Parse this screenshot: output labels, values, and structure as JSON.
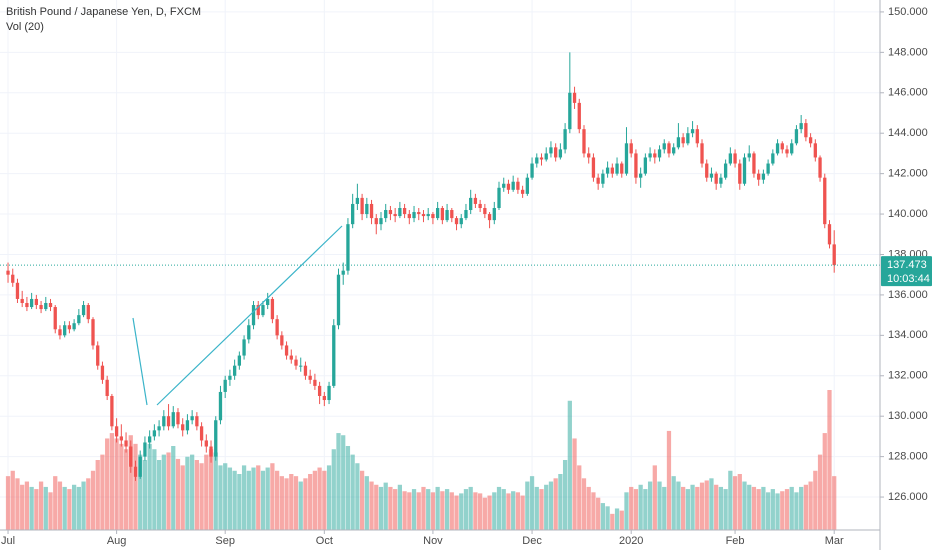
{
  "chart_data": {
    "type": "candlestick",
    "title": "British Pound / Japanese Yen, D, FXCM",
    "subtitle": "Vol (20)",
    "up_color": "#26a69a",
    "down_color": "#ef5350",
    "countdown": "10:03:44",
    "xlim": [
      -1.7,
      184.7
    ],
    "ylim": [
      124.37,
      150.59
    ],
    "yticks": [
      {
        "value": 150,
        "label": "150.000"
      },
      {
        "value": 148,
        "label": "148.000"
      },
      {
        "value": 146,
        "label": "146.000"
      },
      {
        "value": 144,
        "label": "144.000"
      },
      {
        "value": 142,
        "label": "142.000"
      },
      {
        "value": 140,
        "label": "140.000"
      },
      {
        "value": 138,
        "label": "138.000"
      },
      {
        "value": 136,
        "label": "136.000"
      },
      {
        "value": 134,
        "label": "134.000"
      },
      {
        "value": 132,
        "label": "132.000"
      },
      {
        "value": 130,
        "label": "130.000"
      },
      {
        "value": 128,
        "label": "128.000"
      },
      {
        "value": 126,
        "label": "126.000"
      }
    ],
    "xticks": [
      {
        "value": 0,
        "label": "Jul"
      },
      {
        "value": 23,
        "label": "Aug"
      },
      {
        "value": 46,
        "label": "Sep"
      },
      {
        "value": 67,
        "label": "Oct"
      },
      {
        "value": 90,
        "label": "Nov"
      },
      {
        "value": 111,
        "label": "Dec"
      },
      {
        "value": 132,
        "label": "2020"
      },
      {
        "value": 154,
        "label": "Feb"
      },
      {
        "value": 175,
        "label": "Mar"
      }
    ],
    "candles": [
      [
        137.2,
        137.6,
        136.6,
        137.0
      ],
      [
        137.0,
        137.3,
        136.4,
        136.6
      ],
      [
        136.6,
        136.8,
        135.6,
        135.8
      ],
      [
        135.8,
        136.2,
        135.4,
        135.6
      ],
      [
        135.6,
        135.9,
        135.2,
        135.4
      ],
      [
        135.4,
        136.1,
        135.3,
        135.8
      ],
      [
        135.8,
        136.0,
        135.3,
        135.5
      ],
      [
        135.5,
        135.7,
        135.1,
        135.3
      ],
      [
        135.3,
        135.9,
        135.2,
        135.6
      ],
      [
        135.6,
        135.8,
        135.2,
        135.4
      ],
      [
        135.4,
        135.5,
        134.1,
        134.3
      ],
      [
        134.3,
        134.5,
        133.8,
        134.0
      ],
      [
        134.0,
        134.7,
        133.9,
        134.5
      ],
      [
        134.5,
        134.7,
        134.1,
        134.3
      ],
      [
        134.3,
        134.8,
        134.2,
        134.6
      ],
      [
        134.6,
        135.3,
        134.5,
        135.0
      ],
      [
        135.0,
        135.7,
        134.9,
        135.5
      ],
      [
        135.5,
        135.6,
        134.6,
        134.8
      ],
      [
        134.8,
        134.9,
        133.3,
        133.5
      ],
      [
        133.5,
        133.7,
        132.3,
        132.5
      ],
      [
        132.5,
        132.7,
        131.6,
        131.8
      ],
      [
        131.8,
        132.0,
        130.8,
        131.0
      ],
      [
        131.0,
        131.1,
        129.3,
        129.5
      ],
      [
        129.5,
        129.9,
        128.7,
        129.0
      ],
      [
        129.0,
        129.6,
        128.5,
        128.8
      ],
      [
        128.8,
        129.2,
        128.2,
        128.5
      ],
      [
        128.5,
        128.8,
        127.2,
        127.5
      ],
      [
        127.5,
        127.8,
        126.8,
        127.0
      ],
      [
        127.0,
        128.3,
        126.9,
        128.0
      ],
      [
        128.0,
        129.0,
        127.8,
        128.7
      ],
      [
        128.7,
        129.3,
        128.4,
        129.0
      ],
      [
        129.0,
        129.6,
        128.8,
        129.3
      ],
      [
        129.3,
        129.8,
        129.0,
        129.5
      ],
      [
        129.5,
        130.3,
        129.3,
        130.0
      ],
      [
        130.0,
        130.6,
        129.3,
        129.5
      ],
      [
        129.5,
        130.5,
        129.4,
        130.2
      ],
      [
        130.2,
        130.4,
        129.4,
        129.6
      ],
      [
        129.6,
        129.9,
        129.0,
        129.3
      ],
      [
        129.3,
        130.1,
        129.1,
        129.8
      ],
      [
        129.8,
        130.3,
        129.6,
        130.0
      ],
      [
        130.0,
        130.2,
        129.3,
        129.5
      ],
      [
        129.5,
        129.7,
        128.5,
        128.8
      ],
      [
        128.8,
        129.1,
        128.2,
        128.5
      ],
      [
        128.5,
        128.8,
        127.7,
        128.0
      ],
      [
        128.0,
        130.0,
        127.8,
        129.8
      ],
      [
        129.8,
        131.5,
        129.6,
        131.2
      ],
      [
        131.2,
        132.0,
        130.9,
        131.8
      ],
      [
        131.8,
        132.3,
        131.5,
        132.0
      ],
      [
        132.0,
        132.8,
        131.8,
        132.5
      ],
      [
        132.5,
        133.2,
        132.3,
        133.0
      ],
      [
        133.0,
        134.0,
        132.8,
        133.8
      ],
      [
        133.8,
        134.8,
        133.6,
        134.5
      ],
      [
        134.5,
        135.7,
        134.3,
        135.5
      ],
      [
        135.5,
        135.7,
        134.8,
        135.0
      ],
      [
        135.0,
        135.7,
        134.9,
        135.5
      ],
      [
        135.5,
        136.1,
        135.3,
        135.8
      ],
      [
        135.8,
        135.9,
        134.6,
        134.8
      ],
      [
        134.8,
        135.0,
        133.8,
        134.0
      ],
      [
        134.0,
        134.2,
        133.3,
        133.5
      ],
      [
        133.5,
        133.7,
        132.8,
        133.0
      ],
      [
        133.0,
        133.3,
        132.6,
        132.8
      ],
      [
        132.8,
        133.0,
        132.3,
        132.5
      ],
      [
        132.5,
        132.9,
        132.2,
        132.5
      ],
      [
        132.5,
        132.7,
        131.8,
        132.0
      ],
      [
        132.0,
        132.3,
        131.6,
        131.8
      ],
      [
        131.8,
        132.1,
        131.3,
        131.5
      ],
      [
        131.5,
        131.7,
        130.6,
        131.0
      ],
      [
        131.0,
        131.2,
        130.5,
        130.8
      ],
      [
        130.8,
        131.7,
        130.6,
        131.5
      ],
      [
        131.5,
        134.8,
        131.4,
        134.5
      ],
      [
        134.5,
        137.3,
        134.3,
        137.0
      ],
      [
        137.0,
        137.6,
        136.5,
        137.2
      ],
      [
        137.2,
        139.8,
        137.0,
        139.5
      ],
      [
        139.5,
        141.0,
        139.3,
        140.5
      ],
      [
        140.5,
        141.5,
        140.2,
        140.8
      ],
      [
        140.8,
        141.0,
        139.7,
        140.0
      ],
      [
        140.0,
        140.8,
        139.8,
        140.5
      ],
      [
        140.5,
        140.7,
        139.5,
        139.8
      ],
      [
        139.8,
        140.0,
        139.0,
        139.5
      ],
      [
        139.5,
        140.1,
        139.2,
        139.8
      ],
      [
        139.8,
        140.5,
        139.6,
        140.2
      ],
      [
        140.2,
        140.4,
        139.7,
        140.0
      ],
      [
        140.0,
        140.3,
        139.6,
        139.9
      ],
      [
        139.9,
        140.6,
        139.8,
        140.3
      ],
      [
        140.3,
        140.5,
        139.8,
        140.0
      ],
      [
        140.0,
        140.2,
        139.5,
        139.8
      ],
      [
        139.8,
        140.4,
        139.6,
        140.1
      ],
      [
        140.1,
        140.3,
        139.7,
        140.0
      ],
      [
        140.0,
        140.2,
        139.6,
        139.9
      ],
      [
        139.9,
        140.3,
        139.7,
        140.0
      ],
      [
        140.0,
        140.1,
        139.5,
        139.8
      ],
      [
        139.8,
        140.6,
        139.7,
        140.3
      ],
      [
        140.3,
        140.4,
        139.5,
        139.7
      ],
      [
        139.7,
        140.5,
        139.6,
        140.2
      ],
      [
        140.2,
        140.3,
        139.6,
        139.8
      ],
      [
        139.8,
        139.9,
        139.2,
        139.5
      ],
      [
        139.5,
        140.0,
        139.3,
        139.8
      ],
      [
        139.8,
        140.5,
        139.7,
        140.2
      ],
      [
        140.2,
        141.2,
        140.0,
        140.8
      ],
      [
        140.8,
        141.0,
        140.3,
        140.5
      ],
      [
        140.5,
        140.7,
        140.1,
        140.3
      ],
      [
        140.3,
        140.5,
        139.8,
        140.0
      ],
      [
        140.0,
        140.1,
        139.3,
        139.7
      ],
      [
        139.7,
        140.6,
        139.5,
        140.3
      ],
      [
        140.3,
        141.6,
        140.2,
        141.3
      ],
      [
        141.3,
        141.8,
        141.1,
        141.5
      ],
      [
        141.5,
        141.7,
        141.0,
        141.2
      ],
      [
        141.2,
        141.9,
        141.1,
        141.6
      ],
      [
        141.6,
        141.8,
        141.0,
        141.2
      ],
      [
        141.2,
        141.4,
        140.8,
        141.0
      ],
      [
        141.0,
        142.0,
        140.9,
        141.8
      ],
      [
        141.8,
        142.8,
        141.7,
        142.5
      ],
      [
        142.5,
        143.0,
        142.3,
        142.8
      ],
      [
        142.8,
        143.0,
        142.4,
        142.7
      ],
      [
        142.7,
        143.3,
        142.6,
        143.0
      ],
      [
        143.0,
        143.6,
        142.8,
        143.3
      ],
      [
        143.3,
        143.5,
        142.6,
        142.8
      ],
      [
        142.8,
        143.5,
        142.7,
        143.2
      ],
      [
        143.2,
        144.5,
        143.0,
        144.2
      ],
      [
        144.2,
        148.0,
        144.0,
        146.0
      ],
      [
        146.0,
        146.3,
        145.2,
        145.5
      ],
      [
        145.5,
        145.7,
        144.0,
        144.2
      ],
      [
        144.2,
        144.4,
        142.8,
        143.0
      ],
      [
        143.0,
        143.3,
        142.5,
        142.8
      ],
      [
        142.8,
        143.0,
        141.6,
        141.8
      ],
      [
        141.8,
        142.0,
        141.2,
        141.5
      ],
      [
        141.5,
        142.2,
        141.3,
        142.0
      ],
      [
        142.0,
        142.6,
        141.8,
        142.3
      ],
      [
        142.3,
        142.5,
        141.8,
        142.0
      ],
      [
        142.0,
        142.8,
        141.9,
        142.5
      ],
      [
        142.5,
        142.6,
        141.8,
        142.0
      ],
      [
        142.0,
        144.3,
        141.9,
        143.5
      ],
      [
        143.5,
        143.7,
        142.8,
        143.0
      ],
      [
        143.0,
        143.2,
        141.5,
        141.8
      ],
      [
        141.8,
        142.3,
        141.3,
        142.0
      ],
      [
        142.0,
        143.0,
        141.9,
        142.8
      ],
      [
        142.8,
        143.3,
        142.6,
        143.0
      ],
      [
        143.0,
        143.2,
        142.5,
        142.8
      ],
      [
        142.8,
        143.4,
        142.6,
        143.2
      ],
      [
        143.2,
        143.7,
        143.0,
        143.5
      ],
      [
        143.5,
        143.6,
        142.8,
        143.0
      ],
      [
        143.0,
        143.5,
        142.9,
        143.3
      ],
      [
        143.3,
        144.5,
        143.2,
        143.8
      ],
      [
        143.8,
        144.0,
        143.3,
        143.5
      ],
      [
        143.5,
        144.3,
        143.4,
        144.0
      ],
      [
        144.0,
        144.6,
        143.8,
        144.2
      ],
      [
        144.2,
        144.4,
        143.3,
        143.5
      ],
      [
        143.5,
        143.7,
        142.3,
        142.5
      ],
      [
        142.5,
        142.7,
        141.6,
        141.8
      ],
      [
        141.8,
        142.3,
        141.6,
        142.0
      ],
      [
        142.0,
        142.1,
        141.2,
        141.5
      ],
      [
        141.5,
        142.0,
        141.3,
        141.8
      ],
      [
        141.8,
        142.7,
        141.7,
        142.5
      ],
      [
        142.5,
        143.3,
        142.4,
        143.0
      ],
      [
        143.0,
        143.2,
        142.3,
        142.5
      ],
      [
        142.5,
        142.7,
        141.2,
        141.5
      ],
      [
        141.5,
        143.0,
        141.4,
        142.8
      ],
      [
        142.8,
        143.4,
        142.6,
        143.0
      ],
      [
        143.0,
        143.1,
        141.8,
        142.0
      ],
      [
        142.0,
        142.2,
        141.4,
        141.7
      ],
      [
        141.7,
        142.2,
        141.5,
        142.0
      ],
      [
        142.0,
        142.7,
        141.9,
        142.5
      ],
      [
        142.5,
        143.2,
        142.4,
        143.0
      ],
      [
        143.0,
        143.7,
        142.9,
        143.5
      ],
      [
        143.5,
        143.6,
        143.0,
        143.2
      ],
      [
        143.2,
        143.4,
        142.8,
        143.0
      ],
      [
        143.0,
        143.7,
        142.9,
        143.5
      ],
      [
        143.5,
        144.4,
        143.4,
        144.2
      ],
      [
        144.2,
        144.9,
        144.0,
        144.5
      ],
      [
        144.5,
        144.7,
        143.6,
        143.8
      ],
      [
        143.8,
        144.0,
        143.3,
        143.5
      ],
      [
        143.5,
        143.7,
        142.6,
        142.8
      ],
      [
        142.8,
        142.9,
        141.6,
        141.8
      ],
      [
        141.8,
        142.0,
        139.3,
        139.5
      ],
      [
        139.5,
        139.7,
        138.3,
        138.5
      ],
      [
        138.5,
        139.2,
        137.1,
        137.473
      ]
    ],
    "volume": [
      50,
      55,
      48,
      42,
      45,
      40,
      38,
      45,
      40,
      35,
      50,
      45,
      40,
      38,
      42,
      40,
      45,
      48,
      55,
      65,
      70,
      85,
      90,
      85,
      80,
      75,
      88,
      80,
      70,
      65,
      80,
      75,
      65,
      70,
      72,
      78,
      66,
      60,
      68,
      70,
      65,
      62,
      70,
      75,
      72,
      60,
      62,
      58,
      55,
      52,
      60,
      55,
      58,
      60,
      55,
      58,
      62,
      55,
      50,
      48,
      52,
      50,
      45,
      48,
      52,
      55,
      58,
      55,
      60,
      75,
      90,
      88,
      78,
      70,
      62,
      55,
      50,
      45,
      42,
      40,
      44,
      40,
      38,
      42,
      36,
      35,
      38,
      35,
      40,
      38,
      35,
      40,
      36,
      38,
      35,
      32,
      34,
      38,
      40,
      35,
      34,
      30,
      32,
      35,
      40,
      38,
      34,
      36,
      35,
      32,
      45,
      50,
      40,
      38,
      42,
      45,
      48,
      52,
      65,
      120,
      85,
      60,
      48,
      40,
      35,
      30,
      25,
      22,
      15,
      20,
      18,
      35,
      40,
      38,
      42,
      38,
      45,
      60,
      45,
      40,
      92,
      50,
      45,
      40,
      38,
      42,
      40,
      44,
      46,
      48,
      42,
      40,
      38,
      55,
      50,
      52,
      45,
      42,
      40,
      38,
      40,
      35,
      38,
      34,
      36,
      38,
      40,
      35,
      40,
      42,
      45,
      55,
      70,
      90,
      130,
      50
    ]
  }
}
